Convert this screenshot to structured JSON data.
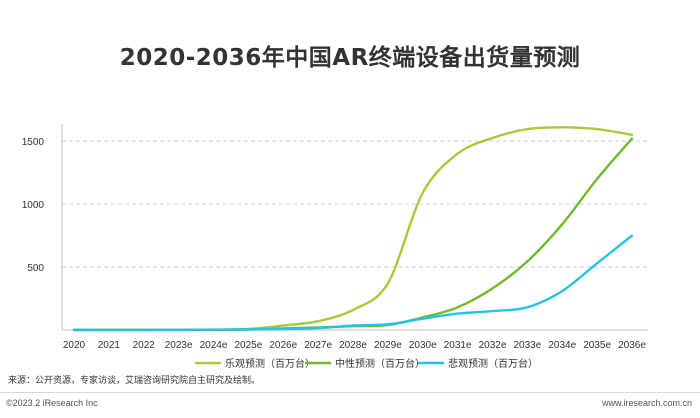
{
  "title": "2020-2036年中国AR终端设备出货量预测",
  "source": "来源：公开资源，专家访谈，艾瑞咨询研究院自主研究及绘制。",
  "copyright": "©2023.2 iResearch Inc",
  "website": "www.iresearch.com.cn",
  "chart_data": {
    "type": "line",
    "title": "2020-2036年中国AR终端设备出货量预测",
    "xlabel": "",
    "ylabel": "",
    "categories": [
      "2020",
      "2021",
      "2022",
      "2023e",
      "2024e",
      "2025e",
      "2026e",
      "2027e",
      "2028e",
      "2029e",
      "2030e",
      "2031e",
      "2032e",
      "2033e",
      "2034e",
      "2035e",
      "2036e"
    ],
    "yticks": [
      500,
      1000,
      1500
    ],
    "ylim": [
      0,
      1620
    ],
    "grid": true,
    "legend_position": "bottom",
    "series": [
      {
        "name": "乐观预测（百万台）",
        "color": "#a9c93b",
        "values": [
          1,
          1,
          1,
          2,
          3,
          8,
          35,
          70,
          160,
          370,
          1090,
          1400,
          1525,
          1595,
          1610,
          1595,
          1550
        ]
      },
      {
        "name": "中性预测（百万台）",
        "color": "#72b82b",
        "values": [
          1,
          1,
          1,
          1,
          2,
          5,
          12,
          20,
          30,
          40,
          100,
          180,
          330,
          545,
          840,
          1200,
          1520
        ]
      },
      {
        "name": "悲观预测（百万台）",
        "color": "#22c3e6",
        "values": [
          1,
          1,
          1,
          1,
          2,
          4,
          8,
          15,
          35,
          45,
          90,
          130,
          150,
          180,
          310,
          530,
          750
        ]
      }
    ]
  }
}
